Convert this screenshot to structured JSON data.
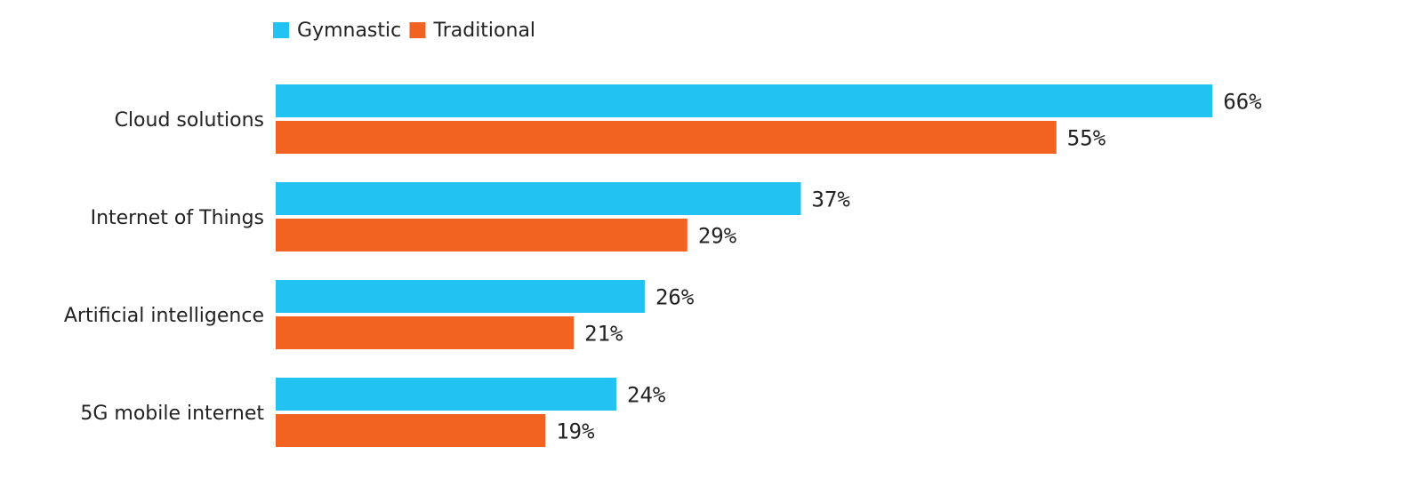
{
  "chart_data": {
    "type": "bar",
    "orientation": "horizontal",
    "categories": [
      "Cloud solutions",
      "Internet of Things",
      "Artificial intelligence",
      "5G mobile internet"
    ],
    "series": [
      {
        "name": "Gymnastic",
        "values": [
          66,
          37,
          26,
          24
        ],
        "color": "#22c3f3"
      },
      {
        "name": "Traditional",
        "values": [
          55,
          29,
          21,
          19
        ],
        "color": "#f26322"
      }
    ],
    "value_suffix": "%",
    "xlim": [
      0,
      100
    ],
    "grid": false,
    "legend_position": "top-left",
    "title": "",
    "xlabel": "",
    "ylabel": ""
  }
}
